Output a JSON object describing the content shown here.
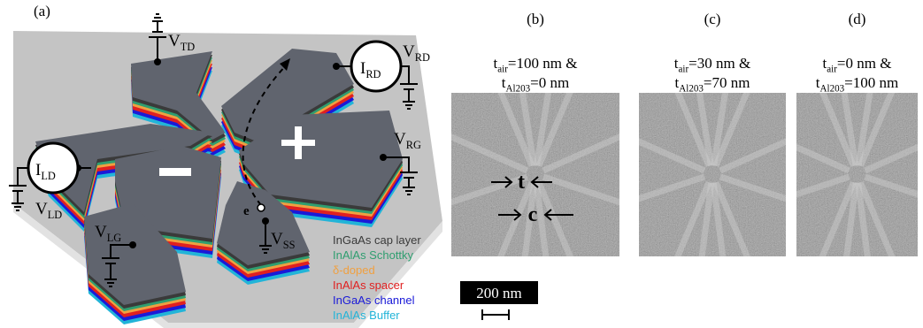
{
  "panel_a": {
    "label": "(a)",
    "terminals": [
      {
        "base": "V",
        "sub": "TD"
      },
      {
        "base": "I",
        "sub": "RD"
      },
      {
        "base": "V",
        "sub": "RD"
      },
      {
        "base": "V",
        "sub": "RG"
      },
      {
        "base": "I",
        "sub": "LD"
      },
      {
        "base": "V",
        "sub": "LD"
      },
      {
        "base": "V",
        "sub": "LG"
      },
      {
        "base": "V",
        "sub": "SS"
      }
    ],
    "electron": "e",
    "legend": [
      {
        "text": "InGaAs cap layer",
        "color": "#3a3a3a"
      },
      {
        "text": "InAlAs Schottky",
        "color": "#2f9e70"
      },
      {
        "text": "δ-doped",
        "color": "#f0a040"
      },
      {
        "text": "InAlAs spacer",
        "color": "#e02020"
      },
      {
        "text": "InGaAs channel",
        "color": "#1a1ad8"
      },
      {
        "text": "InAlAs Buffer",
        "color": "#22b4d8"
      }
    ]
  },
  "panels": [
    {
      "label": "(b)",
      "line1": {
        "base": "t",
        "sub": "air",
        "rest": "=100 nm &"
      },
      "line2": {
        "base": "t",
        "sub": "Al203",
        "rest": "=0 nm"
      }
    },
    {
      "label": "(c)",
      "line1": {
        "base": "t",
        "sub": "air",
        "rest": "=30 nm &"
      },
      "line2": {
        "base": "t",
        "sub": "Al203",
        "rest": "=70 nm"
      }
    },
    {
      "label": "(d)",
      "line1": {
        "base": "t",
        "sub": "air",
        "rest": "=0 nm &"
      },
      "line2": {
        "base": "t",
        "sub": "Al203",
        "rest": "=100 nm"
      }
    }
  ],
  "sem_marks": {
    "t": "t",
    "c": "c"
  },
  "scale_bar": "200 nm"
}
